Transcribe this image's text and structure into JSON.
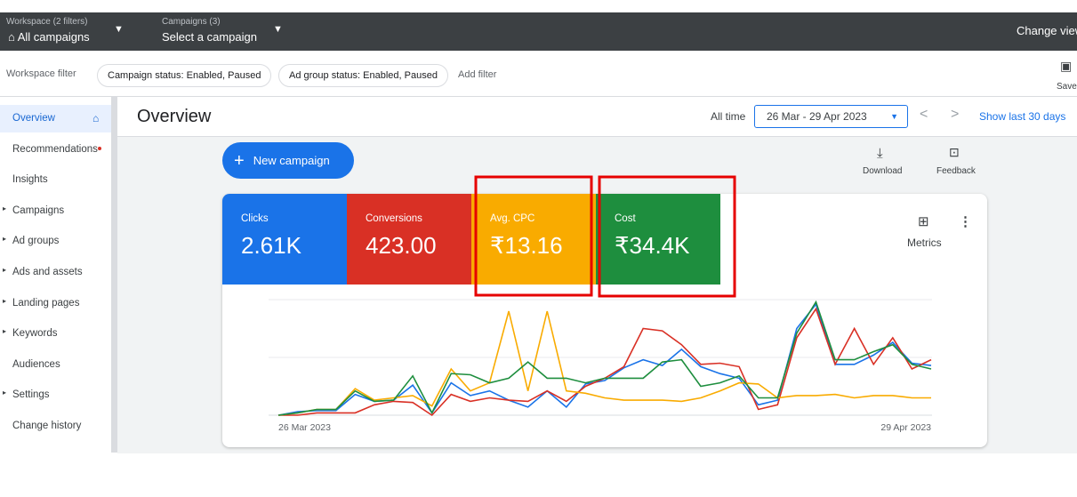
{
  "topbar": {
    "workspace_label": "Workspace (2 filters)",
    "workspace_value": "All campaigns",
    "campaigns_label": "Campaigns (3)",
    "campaigns_value": "Select a campaign",
    "change_view": "Change view"
  },
  "filters": {
    "label": "Workspace filter",
    "chips": [
      "Campaign status: Enabled, Paused",
      "Ad group status: Enabled, Paused"
    ],
    "add": "Add filter",
    "save": "Save"
  },
  "sidebar": {
    "items": [
      {
        "label": "Overview",
        "expandable": false
      },
      {
        "label": "Recommendations",
        "expandable": false
      },
      {
        "label": "Insights",
        "expandable": false
      },
      {
        "label": "Campaigns",
        "expandable": true
      },
      {
        "label": "Ad groups",
        "expandable": true
      },
      {
        "label": "Ads and assets",
        "expandable": true
      },
      {
        "label": "Landing pages",
        "expandable": true
      },
      {
        "label": "Keywords",
        "expandable": true
      },
      {
        "label": "Audiences",
        "expandable": false
      },
      {
        "label": "Settings",
        "expandable": true
      },
      {
        "label": "Change history",
        "expandable": false
      }
    ]
  },
  "header": {
    "title": "Overview",
    "range_label": "All time",
    "date_range": "26 Mar - 29 Apr 2023",
    "show_last": "Show last 30 days"
  },
  "actions": {
    "new_campaign": "New campaign",
    "download": "Download",
    "feedback": "Feedback",
    "metrics": "Metrics"
  },
  "metrics": [
    {
      "label": "Clicks",
      "value": "2.61K",
      "color": "#1a73e8"
    },
    {
      "label": "Conversions",
      "value": "423.00",
      "color": "#d93025"
    },
    {
      "label": "Avg. CPC",
      "value": "₹13.16",
      "color": "#f9ab00"
    },
    {
      "label": "Cost",
      "value": "₹34.4K",
      "color": "#1e8e3e"
    }
  ],
  "chart_data": {
    "type": "line",
    "ylim": [
      0,
      100
    ],
    "categories": [
      "26 Mar 2023",
      null,
      null,
      null,
      null,
      null,
      null,
      null,
      null,
      null,
      null,
      null,
      null,
      null,
      null,
      null,
      null,
      null,
      null,
      null,
      null,
      null,
      null,
      null,
      null,
      null,
      null,
      null,
      null,
      null,
      null,
      null,
      null,
      null,
      "29 Apr 2023"
    ],
    "series": [
      {
        "name": "Clicks",
        "color": "#1a73e8",
        "values": [
          0,
          3,
          4,
          4,
          18,
          12,
          13,
          26,
          2,
          28,
          17,
          21,
          13,
          7,
          21,
          7,
          27,
          30,
          41,
          48,
          43,
          57,
          42,
          36,
          32,
          9,
          13,
          75,
          96,
          44,
          44,
          52,
          63,
          45,
          43
        ]
      },
      {
        "name": "Conversions",
        "color": "#d93025",
        "values": [
          0,
          0,
          2,
          2,
          2,
          9,
          12,
          11,
          0,
          18,
          12,
          15,
          13,
          12,
          21,
          12,
          25,
          32,
          42,
          75,
          73,
          61,
          44,
          45,
          42,
          5,
          9,
          67,
          92,
          44,
          75,
          44,
          67,
          40,
          48
        ]
      },
      {
        "name": "Avg. CPC",
        "color": "#f9ab00",
        "values": [
          0,
          2,
          5,
          5,
          23,
          13,
          15,
          17,
          8,
          40,
          21,
          28,
          90,
          21,
          90,
          21,
          19,
          15,
          13,
          13,
          13,
          12,
          15,
          21,
          28,
          27,
          15,
          17,
          17,
          18,
          15,
          17,
          17,
          15,
          15
        ]
      },
      {
        "name": "Cost",
        "color": "#1e8e3e",
        "values": [
          0,
          2,
          5,
          5,
          21,
          12,
          13,
          34,
          2,
          36,
          35,
          28,
          32,
          46,
          32,
          32,
          28,
          32,
          32,
          32,
          46,
          48,
          25,
          28,
          34,
          15,
          15,
          71,
          98,
          48,
          48,
          55,
          61,
          44,
          40
        ]
      }
    ]
  }
}
